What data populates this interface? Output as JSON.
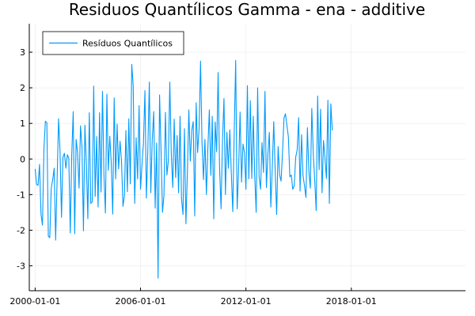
{
  "chart_data": {
    "type": "line",
    "title": "Residuos Quantílicos Gamma - ena - additive",
    "xlabel": "",
    "ylabel": "",
    "x_start": "2000-01",
    "x_frequency": "monthly",
    "xlim": [
      "1999-09",
      "2024-07"
    ],
    "ylim": [
      -3.7,
      3.8
    ],
    "xticks": [
      "2000-01-01",
      "2006-01-01",
      "2012-01-01",
      "2018-01-01"
    ],
    "yticks": [
      -3,
      -2,
      -1,
      0,
      1,
      2,
      3
    ],
    "grid": true,
    "legend_position": "top-left",
    "series": [
      {
        "name": "Resíduos Quantílicos",
        "color": "#009AFA",
        "values": [
          -0.28,
          -0.72,
          -0.74,
          -0.15,
          -1.55,
          -1.86,
          0.28,
          1.06,
          1.02,
          -2.17,
          -2.21,
          -0.82,
          -0.58,
          -0.26,
          -2.28,
          -0.6,
          1.13,
          0.22,
          -1.64,
          0.05,
          0.16,
          -0.26,
          0.12,
          0.02,
          -2.08,
          0.11,
          1.33,
          -2.1,
          0.55,
          0.17,
          -0.82,
          0.93,
          0.35,
          -2.02,
          0.95,
          -0.15,
          -1.68,
          1.3,
          -1.25,
          -1.2,
          2.05,
          -1.05,
          0.63,
          -1.35,
          1.3,
          -0.93,
          1.9,
          -0.45,
          -1.52,
          1.82,
          -0.32,
          0.64,
          -0.11,
          -1.55,
          1.72,
          -0.56,
          0.98,
          -0.28,
          0.5,
          -0.05,
          -1.33,
          -1.03,
          0.8,
          -0.92,
          1.13,
          -0.7,
          2.66,
          2.05,
          -1.25,
          0.6,
          -0.56,
          1.5,
          -0.85,
          -0.16,
          0.45,
          1.92,
          -1.1,
          0.28,
          2.16,
          -0.95,
          0.55,
          1.33,
          -1.38,
          0.45,
          -3.35,
          1.8,
          0.25,
          -1.5,
          -1.02,
          1.31,
          -0.45,
          -0.05,
          2.16,
          0.15,
          -0.8,
          1.12,
          -0.52,
          0.66,
          -0.95,
          1.2,
          -1.12,
          -1.56,
          0.85,
          -1.82,
          -0.38,
          1.38,
          -0.06,
          0.81,
          1.05,
          -1.6,
          1.58,
          0.18,
          0.85,
          2.75,
          0.46,
          -0.58,
          0.55,
          -1.0,
          0.32,
          1.38,
          -0.46,
          1.2,
          -1.68,
          1.04,
          0.2,
          2.43,
          -0.25,
          -1.4,
          0.53,
          1.7,
          -1.0,
          0.75,
          -0.26,
          0.82,
          -0.38,
          -1.48,
          0.75,
          2.77,
          -1.4,
          -0.3,
          1.32,
          -0.65,
          0.42,
          0.18,
          -0.85,
          2.06,
          -0.56,
          1.64,
          -0.55,
          1.2,
          -0.45,
          -1.5,
          2.0,
          -0.5,
          -0.85,
          0.46,
          -0.38,
          1.9,
          -0.8,
          0.14,
          0.75,
          -1.35,
          -0.25,
          1.05,
          -0.36,
          -1.56,
          0.35,
          -0.45,
          -0.62,
          0.18,
          1.15,
          1.27,
          0.95,
          0.62,
          -0.5,
          -0.45,
          -0.85,
          -0.75,
          0.05,
          0.25,
          1.16,
          -0.9,
          0.68,
          -0.46,
          -0.75,
          -1.08,
          0.88,
          -0.35,
          -0.82,
          1.42,
          0.16,
          -0.6,
          -1.45,
          1.77,
          -0.3,
          1.4,
          -0.95,
          0.52,
          0.02,
          -0.55,
          1.65,
          -1.25,
          1.55,
          0.8
        ]
      }
    ]
  }
}
